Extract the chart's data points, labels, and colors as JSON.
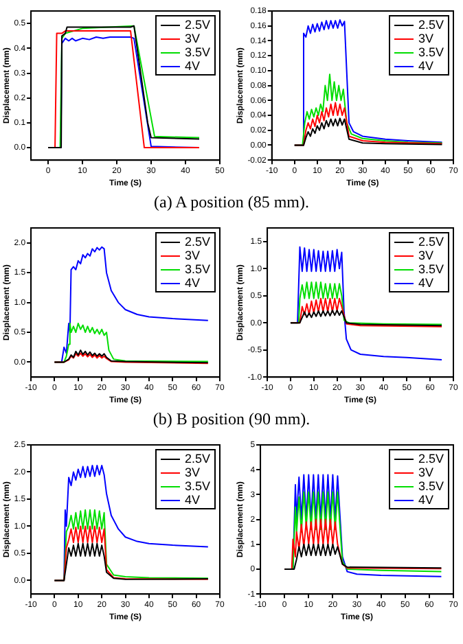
{
  "chart_data": [
    {
      "type": "line",
      "xlabel": "Time (S)",
      "ylabel": "Displacement (mm)",
      "xlim": [
        -5,
        50
      ],
      "xticks": [
        0,
        10,
        20,
        30,
        40,
        50
      ],
      "ylim": [
        -0.05,
        0.55
      ],
      "yticks": [
        {
          "value": 0,
          "label": "0.0"
        },
        {
          "value": 0.1,
          "label": "0.1"
        },
        {
          "value": 0.2,
          "label": "0.2"
        },
        {
          "value": 0.3,
          "label": "0.3"
        },
        {
          "value": 0.4,
          "label": "0.4"
        },
        {
          "value": 0.5,
          "label": "0.5"
        }
      ],
      "grid": false,
      "legend": "top right",
      "marker": "none",
      "line_style": "solid",
      "annotations": [
        "(a) A position (85 mm)."
      ],
      "series": [
        {
          "name": "2.5V",
          "color": "#000000",
          "x": [
            0,
            3.8,
            4,
            5,
            5.5,
            24,
            25,
            29,
            30,
            44
          ],
          "values": [
            0,
            0,
            0.45,
            0.46,
            0.485,
            0.485,
            0.49,
            0.1,
            0.04,
            0.035
          ]
        },
        {
          "name": "3V",
          "color": "#ff0000",
          "x": [
            0,
            2,
            2.5,
            4,
            5,
            24,
            28,
            44
          ],
          "values": [
            0,
            0,
            0.46,
            0.46,
            0.47,
            0.47,
            0,
            0
          ]
        },
        {
          "name": "3.5V",
          "color": "#00dd00",
          "x": [
            0,
            3.5,
            4,
            5,
            10,
            25,
            31,
            44
          ],
          "values": [
            0,
            0,
            0.44,
            0.46,
            0.48,
            0.49,
            0.045,
            0.04
          ]
        },
        {
          "name": "4V",
          "color": "#0000ff",
          "x": [
            0,
            3.7,
            4,
            5,
            6,
            7,
            8,
            10,
            12,
            14,
            16,
            18,
            20,
            24,
            25,
            30,
            44
          ],
          "values": [
            0,
            0,
            0.42,
            0.44,
            0.43,
            0.44,
            0.43,
            0.44,
            0.435,
            0.445,
            0.44,
            0.445,
            0.445,
            0.445,
            0.44,
            0.005,
            0
          ]
        }
      ]
    },
    {
      "type": "line",
      "xlabel": "Time (S)",
      "ylabel": "Displacement (mm)",
      "xlim": [
        -10,
        70
      ],
      "xticks": [
        -10,
        0,
        10,
        20,
        30,
        40,
        50,
        60,
        70
      ],
      "ylim": [
        -0.02,
        0.18
      ],
      "yticks": [
        {
          "value": -0.02,
          "label": "-0.02"
        },
        {
          "value": 0,
          "label": "0.00"
        },
        {
          "value": 0.02,
          "label": "0.02"
        },
        {
          "value": 0.04,
          "label": "0.04"
        },
        {
          "value": 0.06,
          "label": "0.06"
        },
        {
          "value": 0.08,
          "label": "0.08"
        },
        {
          "value": 0.1,
          "label": "0.10"
        },
        {
          "value": 0.12,
          "label": "0.12"
        },
        {
          "value": 0.14,
          "label": "0.14"
        },
        {
          "value": 0.16,
          "label": "0.16"
        },
        {
          "value": 0.18,
          "label": "0.18"
        }
      ],
      "grid": false,
      "legend": "top right",
      "marker": "none",
      "line_style": "solid",
      "series": [
        {
          "name": "2.5V",
          "color": "#000000",
          "x": [
            0,
            4,
            5,
            6,
            7,
            8,
            9,
            10,
            11,
            12,
            13,
            14,
            15,
            16,
            17,
            18,
            19,
            20,
            21,
            22,
            24,
            30,
            40,
            65
          ],
          "values": [
            0,
            0,
            0.01,
            0.018,
            0.012,
            0.022,
            0.016,
            0.026,
            0.02,
            0.03,
            0.022,
            0.033,
            0.025,
            0.035,
            0.026,
            0.035,
            0.026,
            0.036,
            0.027,
            0.035,
            0.008,
            0.003,
            0.002,
            0.001
          ]
        },
        {
          "name": "3V",
          "color": "#ff0000",
          "x": [
            0,
            4,
            5,
            6,
            7,
            8,
            9,
            10,
            11,
            12,
            13,
            14,
            15,
            16,
            17,
            18,
            19,
            20,
            21,
            22,
            24,
            30,
            40,
            65
          ],
          "values": [
            0,
            0,
            0.02,
            0.03,
            0.022,
            0.035,
            0.025,
            0.04,
            0.03,
            0.045,
            0.033,
            0.05,
            0.038,
            0.055,
            0.04,
            0.057,
            0.04,
            0.055,
            0.04,
            0.05,
            0.012,
            0.006,
            0.004,
            0.002
          ]
        },
        {
          "name": "3.5V",
          "color": "#00dd00",
          "x": [
            0,
            3.5,
            4.5,
            5.5,
            6.5,
            7.5,
            8.5,
            9.5,
            10.5,
            11.5,
            12.5,
            13.5,
            14.5,
            15.5,
            16.5,
            17.5,
            18.5,
            19.5,
            20.5,
            21.5,
            23,
            25,
            30,
            40,
            50,
            65
          ],
          "values": [
            0,
            0,
            0.03,
            0.045,
            0.035,
            0.048,
            0.038,
            0.05,
            0.04,
            0.055,
            0.045,
            0.08,
            0.06,
            0.095,
            0.06,
            0.085,
            0.06,
            0.08,
            0.06,
            0.075,
            0.03,
            0.015,
            0.009,
            0.006,
            0.004,
            0.003
          ]
        },
        {
          "name": "4V",
          "color": "#0000ff",
          "x": [
            0,
            3.5,
            4,
            5,
            6,
            7,
            8,
            9,
            10,
            11,
            12,
            13,
            14,
            15,
            16,
            17,
            18,
            19,
            20,
            21,
            22,
            24,
            26,
            30,
            40,
            50,
            65
          ],
          "values": [
            0,
            0,
            0.15,
            0.145,
            0.16,
            0.15,
            0.162,
            0.152,
            0.163,
            0.153,
            0.165,
            0.155,
            0.167,
            0.156,
            0.167,
            0.157,
            0.167,
            0.157,
            0.168,
            0.16,
            0.166,
            0.03,
            0.018,
            0.012,
            0.008,
            0.006,
            0.004
          ]
        }
      ]
    },
    {
      "type": "line",
      "xlabel": "Time (S)",
      "ylabel": "Displacement (mm)",
      "xlim": [
        -10,
        70
      ],
      "xticks": [
        -10,
        0,
        10,
        20,
        30,
        40,
        50,
        60,
        70
      ],
      "ylim": [
        -0.25,
        2.25
      ],
      "yticks": [
        {
          "value": 0,
          "label": "0.0"
        },
        {
          "value": 0.5,
          "label": "0.5"
        },
        {
          "value": 1,
          "label": "1.0"
        },
        {
          "value": 1.5,
          "label": "1.5"
        },
        {
          "value": 2,
          "label": "2.0"
        }
      ],
      "grid": false,
      "legend": "top right",
      "marker": "none",
      "line_style": "solid",
      "annotations": [
        "(b) B position (90 mm)."
      ],
      "series": [
        {
          "name": "2.5V",
          "color": "#000000",
          "x": [
            0,
            4,
            6,
            7,
            8,
            9,
            10,
            11,
            12,
            13,
            14,
            15,
            16,
            17,
            18,
            19,
            20,
            21,
            22,
            24,
            30,
            65
          ],
          "values": [
            0,
            0,
            0.05,
            0.12,
            0.08,
            0.18,
            0.12,
            0.2,
            0.13,
            0.18,
            0.12,
            0.17,
            0.11,
            0.15,
            0.1,
            0.14,
            0.1,
            0.14,
            0.08,
            0.02,
            0.01,
            -0.01
          ]
        },
        {
          "name": "3V",
          "color": "#ff0000",
          "x": [
            0,
            4,
            6,
            7,
            8,
            9,
            10,
            11,
            12,
            13,
            14,
            15,
            16,
            17,
            18,
            19,
            20,
            21,
            22,
            24,
            30,
            65
          ],
          "values": [
            0,
            0,
            0.04,
            0.1,
            0.07,
            0.14,
            0.1,
            0.15,
            0.1,
            0.14,
            0.09,
            0.13,
            0.08,
            0.12,
            0.07,
            0.11,
            0.07,
            0.1,
            0.06,
            0.01,
            0,
            -0.02
          ]
        },
        {
          "name": "3.5V",
          "color": "#00dd00",
          "x": [
            0,
            4,
            5,
            6,
            6.5,
            7,
            8,
            9,
            10,
            11,
            12,
            13,
            14,
            15,
            16,
            17,
            18,
            19,
            20,
            21,
            22,
            23,
            25,
            30,
            65
          ],
          "values": [
            0,
            0,
            0.1,
            0.3,
            0.65,
            0.5,
            0.6,
            0.5,
            0.65,
            0.55,
            0.62,
            0.5,
            0.6,
            0.5,
            0.58,
            0.48,
            0.55,
            0.47,
            0.55,
            0.45,
            0.5,
            0.2,
            0.05,
            0.02,
            0.01
          ]
        },
        {
          "name": "4V",
          "color": "#0000ff",
          "x": [
            0,
            3,
            4,
            5,
            6,
            6.5,
            7,
            8,
            9,
            10,
            11,
            12,
            13,
            14,
            15,
            16,
            17,
            18,
            19,
            20,
            21,
            22,
            24,
            27,
            30,
            35,
            40,
            50,
            65
          ],
          "values": [
            0,
            0,
            0.25,
            0.15,
            0.65,
            0.5,
            1.55,
            1.6,
            1.55,
            1.7,
            1.65,
            1.8,
            1.75,
            1.82,
            1.78,
            1.9,
            1.85,
            1.92,
            1.88,
            1.93,
            1.9,
            1.5,
            1.2,
            1.0,
            0.88,
            0.8,
            0.76,
            0.73,
            0.7
          ]
        }
      ]
    },
    {
      "type": "line",
      "xlabel": "Time (S)",
      "ylabel": "Displacement (mm)",
      "xlim": [
        -10,
        70
      ],
      "xticks": [
        -10,
        0,
        10,
        20,
        30,
        40,
        50,
        60,
        70
      ],
      "ylim": [
        -1,
        1.75
      ],
      "yticks": [
        {
          "value": -1,
          "label": "-1.0"
        },
        {
          "value": -0.5,
          "label": "-0.5"
        },
        {
          "value": 0,
          "label": "0.0"
        },
        {
          "value": 0.5,
          "label": "0.5"
        },
        {
          "value": 1,
          "label": "1.0"
        },
        {
          "value": 1.5,
          "label": "1.5"
        }
      ],
      "grid": false,
      "legend": "top right",
      "marker": "none",
      "line_style": "solid",
      "series": [
        {
          "name": "2.5V",
          "color": "#000000",
          "x": [
            0,
            4,
            5,
            6,
            7,
            8,
            9,
            10,
            11,
            12,
            13,
            14,
            15,
            16,
            17,
            18,
            19,
            20,
            21,
            22,
            24,
            30,
            65
          ],
          "values": [
            0,
            0,
            0.1,
            0.2,
            0.1,
            0.18,
            0.1,
            0.2,
            0.12,
            0.22,
            0.12,
            0.22,
            0.13,
            0.22,
            0.13,
            0.23,
            0.14,
            0.23,
            0.14,
            0.22,
            0,
            -0.03,
            -0.05
          ]
        },
        {
          "name": "3V",
          "color": "#ff0000",
          "x": [
            0,
            4,
            5,
            6,
            7,
            8,
            9,
            10,
            11,
            12,
            13,
            14,
            15,
            16,
            17,
            18,
            19,
            20,
            21,
            22,
            24,
            30,
            65
          ],
          "values": [
            0,
            0,
            0.3,
            0.15,
            0.35,
            0.15,
            0.4,
            0.18,
            0.42,
            0.2,
            0.45,
            0.2,
            0.45,
            0.2,
            0.45,
            0.2,
            0.45,
            0.22,
            0.45,
            0.3,
            -0.02,
            -0.05,
            -0.07
          ]
        },
        {
          "name": "3.5V",
          "color": "#00dd00",
          "x": [
            0,
            3.5,
            4,
            5,
            6,
            7,
            8,
            9,
            10,
            11,
            12,
            13,
            14,
            15,
            16,
            17,
            18,
            19,
            20,
            21,
            22,
            23,
            25,
            40,
            65
          ],
          "values": [
            0,
            0,
            0.45,
            0.7,
            0.45,
            0.75,
            0.45,
            0.75,
            0.45,
            0.75,
            0.45,
            0.75,
            0.45,
            0.72,
            0.45,
            0.72,
            0.45,
            0.72,
            0.45,
            0.72,
            0.5,
            0.05,
            0,
            -0.02,
            -0.03
          ]
        },
        {
          "name": "4V",
          "color": "#0000ff",
          "x": [
            0,
            3,
            4,
            5,
            6,
            7,
            8,
            9,
            10,
            11,
            12,
            13,
            14,
            15,
            16,
            17,
            18,
            19,
            20,
            21,
            22,
            23,
            24,
            26,
            30,
            40,
            50,
            65
          ],
          "values": [
            0,
            0,
            1.4,
            0.95,
            1.38,
            0.95,
            1.35,
            0.95,
            1.35,
            0.95,
            1.33,
            0.95,
            1.32,
            0.95,
            1.32,
            0.95,
            1.33,
            0.95,
            1.35,
            1.0,
            1.3,
            0.2,
            -0.3,
            -0.5,
            -0.58,
            -0.62,
            -0.64,
            -0.68
          ]
        }
      ]
    },
    {
      "type": "line",
      "xlabel": "Time (S)",
      "ylabel": "Displacement (mm)",
      "xlim": [
        -10,
        70
      ],
      "xticks": [
        -10,
        0,
        10,
        20,
        30,
        40,
        50,
        60,
        70
      ],
      "ylim": [
        -0.25,
        2.5
      ],
      "yticks": [
        {
          "value": 0,
          "label": "0.0"
        },
        {
          "value": 0.5,
          "label": "0.5"
        },
        {
          "value": 1,
          "label": "1.0"
        },
        {
          "value": 1.5,
          "label": "1.5"
        },
        {
          "value": 2,
          "label": "2.0"
        },
        {
          "value": 2.5,
          "label": "2.5"
        }
      ],
      "grid": false,
      "legend": "top right",
      "marker": "none",
      "line_style": "solid",
      "series": [
        {
          "name": "2.5V",
          "color": "#000000",
          "x": [
            0,
            4,
            5,
            6,
            7,
            8,
            9,
            10,
            11,
            12,
            13,
            14,
            15,
            16,
            17,
            18,
            19,
            20,
            21,
            22,
            25,
            30,
            65
          ],
          "values": [
            0,
            0,
            0.3,
            0.6,
            0.45,
            0.65,
            0.45,
            0.68,
            0.45,
            0.68,
            0.45,
            0.68,
            0.45,
            0.68,
            0.45,
            0.68,
            0.45,
            0.65,
            0.45,
            0.15,
            0.04,
            0.02,
            0.03
          ]
        },
        {
          "name": "3V",
          "color": "#ff0000",
          "x": [
            0,
            4,
            5,
            6,
            7,
            8,
            9,
            10,
            11,
            12,
            13,
            14,
            15,
            16,
            17,
            18,
            19,
            20,
            21,
            22,
            25,
            30,
            65
          ],
          "values": [
            0,
            0,
            0.6,
            0.75,
            0.95,
            0.7,
            0.98,
            0.7,
            1.0,
            0.7,
            1.0,
            0.7,
            1.0,
            0.7,
            1.0,
            0.7,
            0.98,
            0.7,
            0.95,
            0.2,
            0.05,
            0.03,
            0.02
          ]
        },
        {
          "name": "3.5V",
          "color": "#00dd00",
          "x": [
            0,
            4,
            5,
            6,
            7,
            8,
            9,
            10,
            11,
            12,
            13,
            14,
            15,
            16,
            17,
            18,
            19,
            20,
            21,
            22,
            25,
            30,
            40,
            65
          ],
          "values": [
            0,
            0,
            0.9,
            1.0,
            1.2,
            0.95,
            1.25,
            0.95,
            1.28,
            0.95,
            1.3,
            0.95,
            1.3,
            0.95,
            1.3,
            0.95,
            1.28,
            0.95,
            1.25,
            0.3,
            0.1,
            0.07,
            0.05,
            0.04
          ]
        },
        {
          "name": "4V",
          "color": "#0000ff",
          "x": [
            0,
            4,
            4.5,
            5,
            6,
            7,
            8,
            9,
            10,
            11,
            12,
            13,
            14,
            15,
            16,
            17,
            18,
            19,
            20,
            21,
            22,
            24,
            27,
            30,
            35,
            40,
            50,
            65
          ],
          "values": [
            0,
            0,
            1.3,
            1.0,
            1.9,
            1.75,
            2.0,
            1.85,
            2.05,
            1.9,
            2.1,
            1.9,
            2.1,
            1.92,
            2.12,
            1.92,
            2.12,
            1.95,
            2.12,
            1.95,
            1.6,
            1.2,
            0.95,
            0.8,
            0.72,
            0.68,
            0.65,
            0.62
          ]
        }
      ]
    },
    {
      "type": "line",
      "xlabel": "Time (S)",
      "ylabel": "Displacement (mm)",
      "xlim": [
        -10,
        70
      ],
      "xticks": [
        -10,
        0,
        10,
        20,
        30,
        40,
        50,
        60,
        70
      ],
      "ylim": [
        -1,
        5
      ],
      "yticks": [
        -1,
        0,
        1,
        2,
        3,
        4,
        5
      ],
      "grid": false,
      "legend": "top right",
      "marker": "none",
      "line_style": "solid",
      "series": [
        {
          "name": "2.5V",
          "color": "#000000",
          "x": [
            0,
            4,
            5,
            6,
            7,
            8,
            9,
            10,
            11,
            12,
            13,
            14,
            15,
            16,
            17,
            18,
            19,
            20,
            21,
            22,
            24,
            26,
            65
          ],
          "values": [
            0,
            0,
            0.4,
            0.9,
            0.5,
            1.0,
            0.55,
            1.0,
            0.55,
            1.0,
            0.55,
            1.0,
            0.55,
            1.0,
            0.55,
            1.0,
            0.55,
            1.0,
            0.6,
            0.9,
            0.2,
            0.08,
            0.05
          ]
        },
        {
          "name": "3V",
          "color": "#ff0000",
          "x": [
            0,
            3,
            3.5,
            4.5,
            5,
            6,
            7,
            8,
            9,
            10,
            11,
            12,
            13,
            14,
            15,
            16,
            17,
            18,
            19,
            20,
            21,
            22,
            24,
            26,
            65
          ],
          "values": [
            0,
            0,
            1.2,
            0.5,
            1.5,
            0.8,
            1.8,
            0.9,
            1.9,
            1.0,
            1.9,
            1.0,
            2.0,
            1.0,
            2.0,
            1.0,
            2.0,
            1.0,
            2.0,
            1.0,
            1.9,
            1.0,
            0.2,
            0.05,
            0.02
          ]
        },
        {
          "name": "3.5V",
          "color": "#00dd00",
          "x": [
            0,
            3.5,
            4.5,
            5,
            6,
            7,
            8,
            9,
            10,
            11,
            12,
            13,
            14,
            15,
            16,
            17,
            18,
            19,
            20,
            21,
            22,
            24,
            26,
            40,
            65
          ],
          "values": [
            0,
            0,
            2.5,
            1.5,
            2.9,
            1.5,
            3.1,
            1.7,
            3.1,
            1.6,
            3.1,
            1.6,
            3.1,
            1.6,
            3.1,
            1.6,
            3.1,
            1.6,
            3.1,
            1.6,
            3.1,
            0.3,
            0,
            -0.05,
            -0.1
          ]
        },
        {
          "name": "4V",
          "color": "#0000ff",
          "x": [
            0,
            3.5,
            4.5,
            5,
            6,
            7,
            8,
            9,
            10,
            11,
            12,
            13,
            14,
            15,
            16,
            17,
            18,
            19,
            20,
            21,
            22,
            24,
            26,
            30,
            40,
            65
          ],
          "values": [
            0,
            0,
            3.4,
            2.0,
            3.7,
            2.0,
            3.8,
            2.0,
            3.8,
            2.0,
            3.8,
            2.0,
            3.8,
            2.0,
            3.8,
            2.0,
            3.8,
            2.0,
            3.8,
            2.0,
            3.75,
            0.5,
            -0.1,
            -0.2,
            -0.25,
            -0.3
          ]
        }
      ]
    }
  ]
}
